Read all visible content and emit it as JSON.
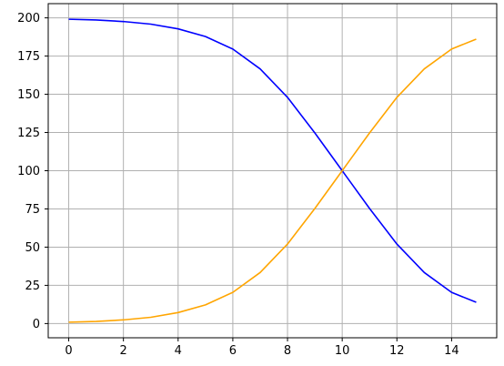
{
  "chart_data": {
    "type": "line",
    "title": "",
    "xlabel": "",
    "ylabel": "",
    "xlim": [
      -0.75,
      15.65
    ],
    "ylim": [
      -9.3,
      209.3
    ],
    "x_ticks": [
      0,
      2,
      4,
      6,
      8,
      10,
      12,
      14
    ],
    "y_ticks": [
      0,
      25,
      50,
      75,
      100,
      125,
      150,
      175,
      200
    ],
    "grid": true,
    "legend": "none",
    "series": [
      {
        "color": "#0000ff",
        "x": [
          0,
          1,
          2,
          3,
          4,
          5,
          6,
          7,
          8,
          9,
          10,
          11,
          12,
          13,
          14,
          14.9
        ],
        "y": [
          199.1,
          198.6,
          197.6,
          195.9,
          192.8,
          187.8,
          179.6,
          166.6,
          148.0,
          124.7,
          100.0,
          75.3,
          52.0,
          33.4,
          20.4,
          13.9
        ]
      },
      {
        "color": "#ffa500",
        "x": [
          0,
          1,
          2,
          3,
          4,
          5,
          6,
          7,
          8,
          9,
          10,
          11,
          12,
          13,
          14,
          14.9
        ],
        "y": [
          0.9,
          1.4,
          2.4,
          4.1,
          7.2,
          12.2,
          20.4,
          33.4,
          52.0,
          75.3,
          100.0,
          124.7,
          148.0,
          166.6,
          179.6,
          186.1
        ]
      }
    ]
  }
}
